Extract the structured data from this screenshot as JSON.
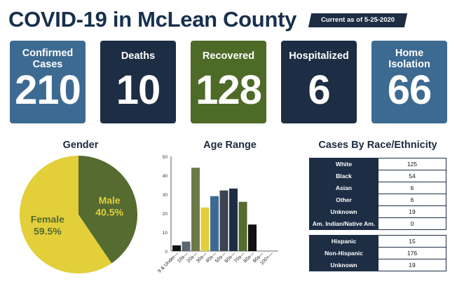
{
  "header": {
    "title": "COVID-19 in McLean County",
    "date_label": "Current as of 5-25-2020"
  },
  "colors": {
    "navy": "#1d2d44",
    "steel_blue": "#3d6a91",
    "olive_green": "#556b2f",
    "green_card": "#4d6a27",
    "yellow": "#e2cf3a"
  },
  "cards": [
    {
      "label_line1": "Confirmed",
      "label_line2": "Cases",
      "value": "210",
      "color": "#3d6a91"
    },
    {
      "label_line1": "Deaths",
      "label_line2": "",
      "value": "10",
      "color": "#1d2d44"
    },
    {
      "label_line1": "Recovered",
      "label_line2": "",
      "value": "128",
      "color": "#4d6a27"
    },
    {
      "label_line1": "Hospitalized",
      "label_line2": "",
      "value": "6",
      "color": "#1d2d44"
    },
    {
      "label_line1": "Home",
      "label_line2": "Isolation",
      "value": "66",
      "color": "#3d6a91"
    }
  ],
  "chart_data": [
    {
      "type": "pie",
      "title": "Gender",
      "slices": [
        {
          "name": "Male",
          "value": 40.5,
          "label": "40.5%",
          "color": "#556b2f",
          "text_color": "#e2cf3a"
        },
        {
          "name": "Female",
          "value": 59.5,
          "label": "59.5%",
          "color": "#e2cf3a",
          "text_color": "#556b2f"
        }
      ]
    },
    {
      "type": "bar",
      "title": "Age Range",
      "categories": [
        "9 & Under",
        "10s",
        "20s",
        "30s",
        "40s",
        "50s",
        "60s",
        "70s",
        "80s",
        "90s",
        "100+"
      ],
      "values": [
        3,
        5,
        44,
        23,
        29,
        32,
        33,
        26,
        14,
        0,
        0
      ],
      "colors": [
        "#111111",
        "#5a6673",
        "#6c7a4a",
        "#e2cf3a",
        "#3d6a91",
        "#3c4452",
        "#1d2d44",
        "#556b2f",
        "#111111",
        "#111111",
        "#111111"
      ],
      "ylim": [
        0,
        50
      ],
      "yticks": [
        "0",
        "10",
        "20",
        "30",
        "40",
        "50"
      ],
      "xlabel": "",
      "ylabel": ""
    },
    {
      "type": "table",
      "title": "Cases By Race/Ethnicity",
      "race_rows": [
        {
          "label": "White",
          "value": "125"
        },
        {
          "label": "Black",
          "value": "54"
        },
        {
          "label": "Asian",
          "value": "6"
        },
        {
          "label": "Other",
          "value": "6"
        },
        {
          "label": "Unknown",
          "value": "19"
        },
        {
          "label": "Am. Indian/Native Am.",
          "value": "0"
        }
      ],
      "ethnicity_rows": [
        {
          "label": "Hispanic",
          "value": "15"
        },
        {
          "label": "Non-Hispanic",
          "value": "176"
        },
        {
          "label": "Unknown",
          "value": "19"
        }
      ]
    }
  ]
}
